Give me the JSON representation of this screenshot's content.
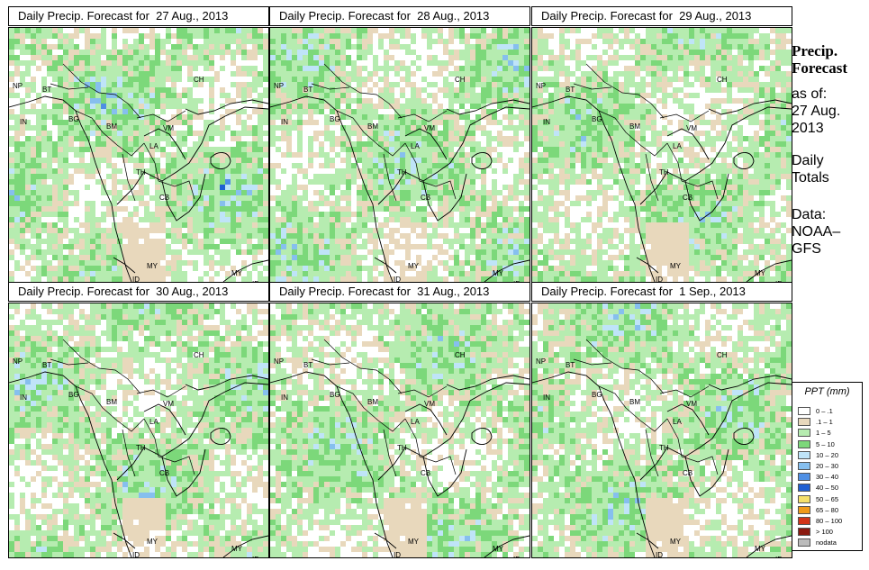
{
  "panels": [
    {
      "title": "Daily Precip. Forecast for  27 Aug., 2013",
      "seed": 11,
      "intensity": 1.0
    },
    {
      "title": "Daily Precip. Forecast for  28 Aug., 2013",
      "seed": 23,
      "intensity": 0.8
    },
    {
      "title": "Daily Precip. Forecast for  29 Aug., 2013",
      "seed": 37,
      "intensity": 0.6
    },
    {
      "title": "Daily Precip. Forecast for  30 Aug., 2013",
      "seed": 41,
      "intensity": 0.7
    },
    {
      "title": "Daily Precip. Forecast for  31 Aug., 2013",
      "seed": 53,
      "intensity": 0.65
    },
    {
      "title": "Daily Precip. Forecast for  1 Sep., 2013",
      "seed": 67,
      "intensity": 0.75
    }
  ],
  "map_labels": [
    "CH",
    "NP",
    "BT",
    "IN",
    "BG",
    "BM",
    "VM",
    "LA",
    "TH",
    "CB",
    "MY",
    "ID",
    "MY",
    "ID"
  ],
  "side": {
    "heading1": "Precip.",
    "heading2": "Forecast",
    "asof1": "as of:",
    "asof2": "27 Aug.",
    "asof3": "2013",
    "daily1": "Daily",
    "daily2": "Totals",
    "data1": "Data:",
    "data2": "NOAA–",
    "data3": "GFS"
  },
  "legend": {
    "title": "PPT (mm)",
    "items": [
      {
        "label": "0 – .1",
        "color": "#ffffff"
      },
      {
        "label": ".1 – 1",
        "color": "#e8d8bc"
      },
      {
        "label": "1 – 5",
        "color": "#b6ecb0"
      },
      {
        "label": "5 – 10",
        "color": "#7cd87a"
      },
      {
        "label": "10 – 20",
        "color": "#bfe4f8"
      },
      {
        "label": "20 – 30",
        "color": "#86bfee"
      },
      {
        "label": "30 – 40",
        "color": "#4f8fe4"
      },
      {
        "label": "40 – 50",
        "color": "#1f5fd2"
      },
      {
        "label": "50 – 65",
        "color": "#f6e06a"
      },
      {
        "label": "65 – 80",
        "color": "#f09a1a"
      },
      {
        "label": "80 – 100",
        "color": "#d23418"
      },
      {
        "label": "> 100",
        "color": "#8a1a10"
      },
      {
        "label": "nodata",
        "color": "#bbbbbb"
      }
    ]
  }
}
